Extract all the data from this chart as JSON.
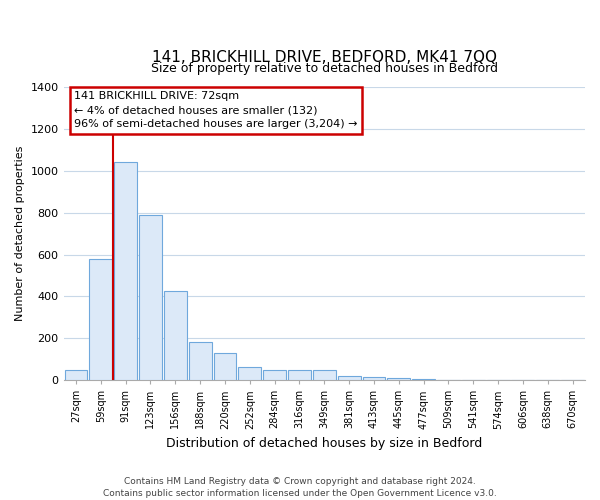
{
  "title": "141, BRICKHILL DRIVE, BEDFORD, MK41 7QQ",
  "subtitle": "Size of property relative to detached houses in Bedford",
  "xlabel": "Distribution of detached houses by size in Bedford",
  "ylabel": "Number of detached properties",
  "bar_labels": [
    "27sqm",
    "59sqm",
    "91sqm",
    "123sqm",
    "156sqm",
    "188sqm",
    "220sqm",
    "252sqm",
    "284sqm",
    "316sqm",
    "349sqm",
    "381sqm",
    "413sqm",
    "445sqm",
    "477sqm",
    "509sqm",
    "541sqm",
    "574sqm",
    "606sqm",
    "638sqm",
    "670sqm"
  ],
  "bar_values": [
    48,
    580,
    1040,
    790,
    425,
    180,
    128,
    65,
    50,
    48,
    48,
    22,
    15,
    10,
    5,
    0,
    0,
    0,
    0,
    0,
    0
  ],
  "bar_color_fill": "#dce9f8",
  "bar_color_edge": "#6fa8dc",
  "vline_color": "#cc0000",
  "vline_x": 1.5,
  "ylim": [
    0,
    1400
  ],
  "yticks": [
    0,
    200,
    400,
    600,
    800,
    1000,
    1200,
    1400
  ],
  "annotation_title": "141 BRICKHILL DRIVE: 72sqm",
  "annotation_line1": "← 4% of detached houses are smaller (132)",
  "annotation_line2": "96% of semi-detached houses are larger (3,204) →",
  "footer_line1": "Contains HM Land Registry data © Crown copyright and database right 2024.",
  "footer_line2": "Contains public sector information licensed under the Open Government Licence v3.0.",
  "background_color": "#ffffff",
  "grid_color": "#c8d8e8",
  "title_fontsize": 11,
  "subtitle_fontsize": 9,
  "ylabel_fontsize": 8,
  "xlabel_fontsize": 9,
  "tick_fontsize": 7,
  "annotation_fontsize": 8,
  "footer_fontsize": 6.5
}
